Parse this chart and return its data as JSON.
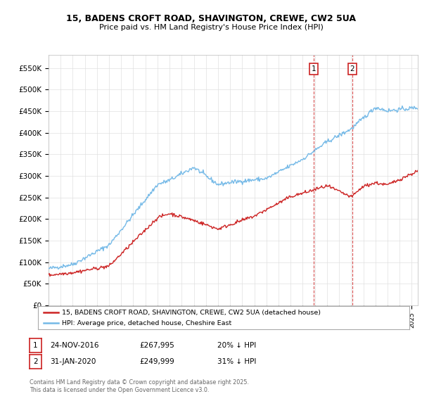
{
  "title_line1": "15, BADENS CROFT ROAD, SHAVINGTON, CREWE, CW2 5UA",
  "title_line2": "Price paid vs. HM Land Registry's House Price Index (HPI)",
  "ytick_labels": [
    "£0",
    "£50K",
    "£100K",
    "£150K",
    "£200K",
    "£250K",
    "£300K",
    "£350K",
    "£400K",
    "£450K",
    "£500K",
    "£550K"
  ],
  "ytick_values": [
    0,
    50000,
    100000,
    150000,
    200000,
    250000,
    300000,
    350000,
    400000,
    450000,
    500000,
    550000
  ],
  "ylim": [
    0,
    580000
  ],
  "hpi_color": "#74b9e7",
  "price_color": "#cc2222",
  "marker1_x": 2016.9,
  "marker1_label": "1",
  "marker1_date": "24-NOV-2016",
  "marker1_price": "£267,995",
  "marker1_note": "20% ↓ HPI",
  "marker2_x": 2020.08,
  "marker2_label": "2",
  "marker2_date": "31-JAN-2020",
  "marker2_price": "£249,999",
  "marker2_note": "31% ↓ HPI",
  "legend_line1": "15, BADENS CROFT ROAD, SHAVINGTON, CREWE, CW2 5UA (detached house)",
  "legend_line2": "HPI: Average price, detached house, Cheshire East",
  "footnote": "Contains HM Land Registry data © Crown copyright and database right 2025.\nThis data is licensed under the Open Government Licence v3.0.",
  "xmin": 1995,
  "xmax": 2025.5,
  "background_color": "#ffffff",
  "grid_color": "#e0e0e0"
}
